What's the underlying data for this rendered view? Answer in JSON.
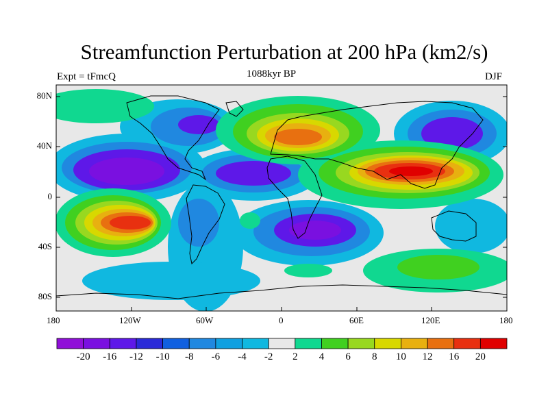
{
  "title": "Streamfunction Perturbation at 200 hPa (km2/s)",
  "subtitle_left": "Expt = tFmcQ",
  "subtitle_center": "1088kyr BP",
  "subtitle_right": "DJF",
  "axes": {
    "y_ticks": [
      "80N",
      "40N",
      "0",
      "40S",
      "80S"
    ],
    "x_ticks": [
      "180",
      "120W",
      "60W",
      "0",
      "60E",
      "120E",
      "180"
    ]
  },
  "colorbar": {
    "colors": [
      "#9010d8",
      "#7a10e0",
      "#5e18e8",
      "#2a2ad8",
      "#1060e0",
      "#2088e0",
      "#10a0e0",
      "#10b8e0",
      "#e8e8e8",
      "#10d890",
      "#40d020",
      "#98d820",
      "#d8d800",
      "#e8b010",
      "#e87010",
      "#e83010",
      "#e00000"
    ],
    "labels": [
      "-20",
      "-16",
      "-12",
      "-10",
      "-8",
      "-6",
      "-4",
      "-2",
      "2",
      "4",
      "6",
      "8",
      "10",
      "12",
      "16",
      "20"
    ]
  },
  "map": {
    "background": "#e8e8e8",
    "projection": "cylindrical-equidistant",
    "x_range": [
      -180,
      180
    ],
    "y_range": [
      -90,
      90
    ]
  }
}
